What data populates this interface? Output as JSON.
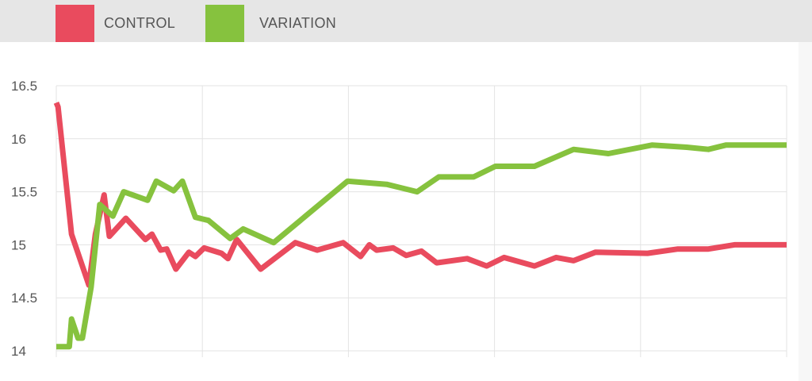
{
  "legend": {
    "items": [
      {
        "label": "CONTROL",
        "color": "#e94b5e"
      },
      {
        "label": "VARIATION",
        "color": "#86c23e"
      }
    ]
  },
  "chart_data": {
    "type": "line",
    "title": "",
    "xlabel": "",
    "ylabel": "",
    "ylim": [
      14,
      16.5
    ],
    "y_ticks": [
      "16.5",
      "16",
      "15.5",
      "15",
      "14.5",
      "14"
    ],
    "x_tick_labels": [],
    "grid": true,
    "legend_position": "top-left",
    "series": [
      {
        "name": "CONTROL",
        "color": "#e94b5e",
        "points": [
          [
            0,
            16.34
          ],
          [
            0.4,
            16.3
          ],
          [
            3.5,
            15.1
          ],
          [
            7.5,
            14.62
          ],
          [
            9,
            15.1
          ],
          [
            11,
            15.47
          ],
          [
            12.2,
            15.08
          ],
          [
            16,
            15.25
          ],
          [
            20.5,
            15.05
          ],
          [
            22,
            15.1
          ],
          [
            24,
            14.95
          ],
          [
            25.4,
            14.96
          ],
          [
            27.5,
            14.77
          ],
          [
            30.5,
            14.93
          ],
          [
            32,
            14.89
          ],
          [
            34,
            14.97
          ],
          [
            38,
            14.92
          ],
          [
            39.5,
            14.87
          ],
          [
            41.5,
            15.05
          ],
          [
            47,
            14.77
          ],
          [
            55,
            15.02
          ],
          [
            60,
            14.95
          ],
          [
            66,
            15.02
          ],
          [
            70,
            14.89
          ],
          [
            72,
            15.0
          ],
          [
            73.7,
            14.95
          ],
          [
            77.5,
            14.97
          ],
          [
            80.5,
            14.9
          ],
          [
            84,
            14.94
          ],
          [
            87.5,
            14.83
          ],
          [
            94.5,
            14.87
          ],
          [
            99,
            14.8
          ],
          [
            103,
            14.88
          ],
          [
            110,
            14.8
          ],
          [
            115,
            14.88
          ],
          [
            119,
            14.85
          ],
          [
            124,
            14.93
          ],
          [
            136,
            14.92
          ],
          [
            143,
            14.96
          ],
          [
            150,
            14.96
          ],
          [
            156,
            15.0
          ],
          [
            168,
            15.0
          ]
        ]
      },
      {
        "name": "VARIATION",
        "color": "#86c23e",
        "points": [
          [
            0,
            14.04
          ],
          [
            3,
            14.04
          ],
          [
            3.5,
            14.3
          ],
          [
            5,
            14.12
          ],
          [
            6,
            14.12
          ],
          [
            8,
            14.6
          ],
          [
            10,
            15.38
          ],
          [
            13,
            15.27
          ],
          [
            15.5,
            15.5
          ],
          [
            21,
            15.42
          ],
          [
            23,
            15.6
          ],
          [
            27,
            15.51
          ],
          [
            29,
            15.6
          ],
          [
            32,
            15.26
          ],
          [
            35,
            15.23
          ],
          [
            40,
            15.06
          ],
          [
            43,
            15.15
          ],
          [
            50,
            15.02
          ],
          [
            67,
            15.6
          ],
          [
            76,
            15.57
          ],
          [
            83,
            15.5
          ],
          [
            88,
            15.64
          ],
          [
            96,
            15.64
          ],
          [
            101,
            15.74
          ],
          [
            110,
            15.74
          ],
          [
            119,
            15.9
          ],
          [
            127,
            15.86
          ],
          [
            137,
            15.94
          ],
          [
            145,
            15.92
          ],
          [
            150,
            15.9
          ],
          [
            154,
            15.94
          ],
          [
            168,
            15.94
          ]
        ]
      }
    ]
  }
}
